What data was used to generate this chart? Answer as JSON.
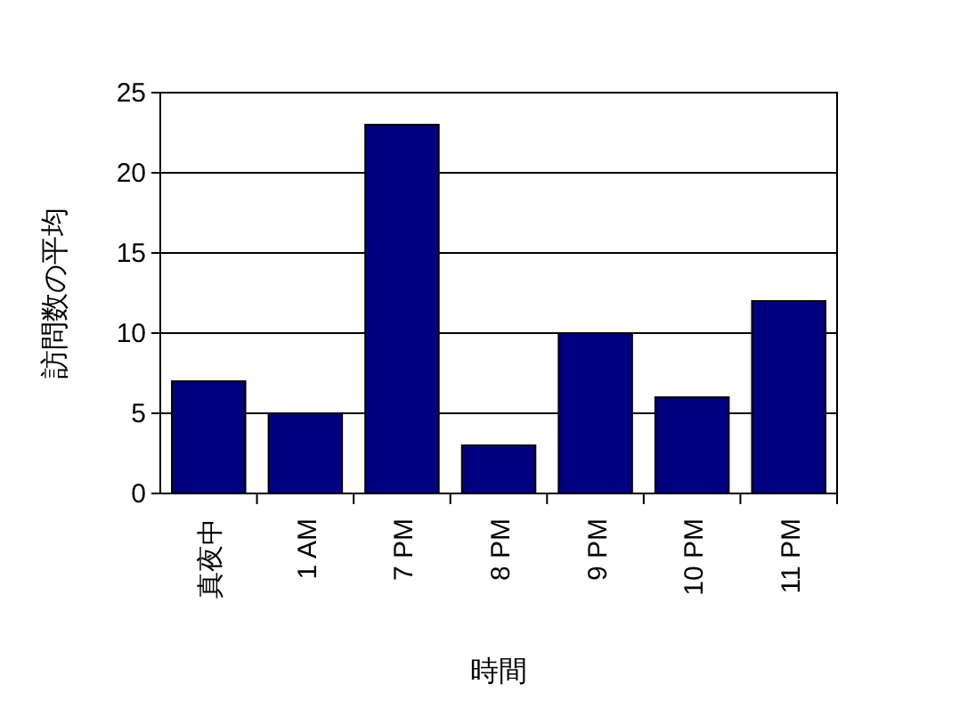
{
  "chart_data": {
    "type": "bar",
    "xlabel": "時間",
    "ylabel": "訪問数の平均",
    "categories": [
      "真夜中",
      "1 AM",
      "7 PM",
      "8 PM",
      "9 PM",
      "10 PM",
      "11 PM"
    ],
    "values": [
      7,
      5,
      23,
      3,
      10,
      6,
      12
    ],
    "color": "#000080",
    "ylim": [
      0,
      25
    ],
    "yticks": [
      0,
      5,
      10,
      15,
      20,
      25
    ],
    "grid": "y"
  }
}
